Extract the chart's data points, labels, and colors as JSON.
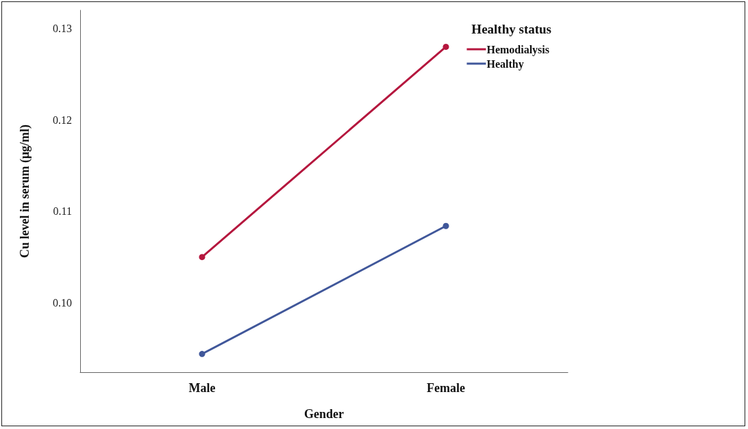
{
  "chart_data": {
    "type": "line",
    "xlabel": "Gender",
    "ylabel": "Cu level in serum (μg/ml)",
    "legend_title": "Healthy status",
    "categories": [
      "Male",
      "Female"
    ],
    "series": [
      {
        "name": "Hemodialysis",
        "color": "#b5173e",
        "values": [
          0.105,
          0.128
        ]
      },
      {
        "name": "Healthy",
        "color": "#40579a",
        "values": [
          0.0944,
          0.1084
        ]
      }
    ],
    "ylim": [
      0.0924,
      0.132
    ],
    "yticks": [
      {
        "value": 0.1,
        "label": "0.10"
      },
      0.11,
      0.12,
      0.13
    ],
    "grid": false,
    "legend": "top right",
    "marker": "circle",
    "line_style": "solid"
  }
}
